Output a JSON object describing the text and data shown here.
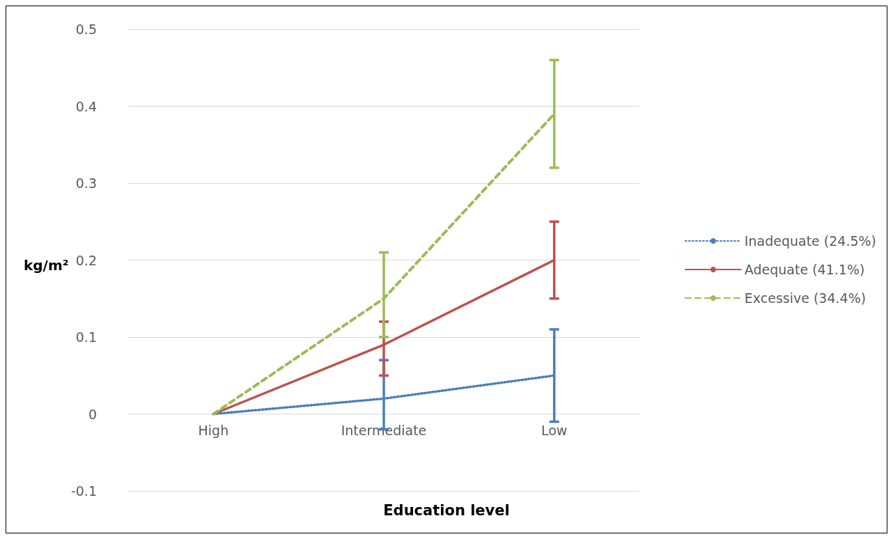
{
  "chart_data": {
    "type": "line",
    "xlabel": "Education level",
    "ylabel": "kg/m²",
    "categories": [
      "High",
      "Intermediate",
      "Low"
    ],
    "series": [
      {
        "name": "Inadequate (24.5%)",
        "color": "#4a7ebb",
        "line_style": "dotted",
        "values": [
          0,
          0.02,
          0.05
        ],
        "errors": [
          null,
          [
            -0.02,
            0.07
          ],
          [
            -0.01,
            0.11
          ]
        ]
      },
      {
        "name": "Adequate (41.1%)",
        "color": "#c0504d",
        "line_style": "solid",
        "values": [
          0,
          0.09,
          0.2
        ],
        "errors": [
          null,
          [
            0.05,
            0.12
          ],
          [
            0.15,
            0.25
          ]
        ]
      },
      {
        "name": "Excessive (34.4%)",
        "color": "#9bbb59",
        "line_style": "dashed",
        "values": [
          0,
          0.15,
          0.39
        ],
        "errors": [
          null,
          [
            0.1,
            0.21
          ],
          [
            0.32,
            0.46
          ]
        ]
      }
    ],
    "ylim": [
      -0.1,
      0.5
    ],
    "yticks": [
      -0.1,
      0,
      0.1,
      0.2,
      0.3,
      0.4,
      0.5
    ],
    "grid": "y",
    "legend": "right",
    "marker": "none"
  }
}
